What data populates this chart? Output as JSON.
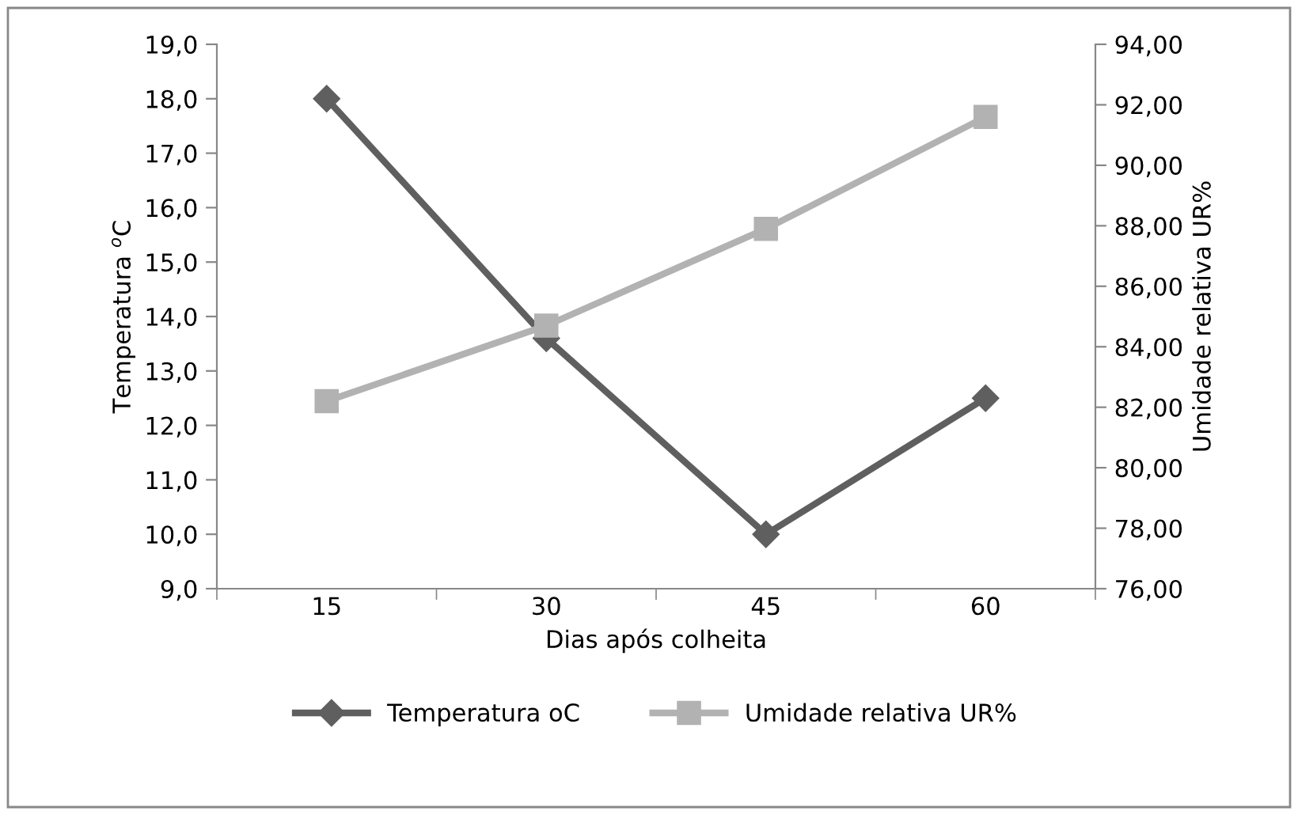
{
  "chart_data": {
    "type": "line",
    "xlabel": "Dias após colheita",
    "ylabel": "Temperatura $^{o}$C",
    "y2label": "Umidade relativa UR%",
    "categories": [
      "15",
      "30",
      "45",
      "60"
    ],
    "series": [
      {
        "name": "Temperatura oC",
        "color": "#5f5f5f",
        "marker": "diamond",
        "values": [
          18.0,
          13.6,
          10.0,
          12.5
        ]
      },
      {
        "name": "Umidade relativa UR%",
        "color": "#b2b2b2",
        "marker": "square",
        "axis": "y2",
        "values": [
          82.2,
          84.7,
          87.9,
          91.6
        ]
      }
    ],
    "ylim": [
      9,
      19
    ],
    "yticks": [
      {
        "value": 9,
        "label": "9,0"
      },
      {
        "value": 10,
        "label": "10,0"
      },
      {
        "value": 11,
        "label": "11,0"
      },
      {
        "value": 12,
        "label": "12,0"
      },
      {
        "value": 13,
        "label": "13,0"
      },
      {
        "value": 14,
        "label": "14,0"
      },
      {
        "value": 15,
        "label": "15,0"
      },
      {
        "value": 16,
        "label": "16,0"
      },
      {
        "value": 17,
        "label": "17,0"
      },
      {
        "value": 18,
        "label": "18,0"
      },
      {
        "value": 19,
        "label": "19,0"
      }
    ],
    "y2lim": [
      76,
      94
    ],
    "y2ticks": [
      {
        "value": 76,
        "label": "76,00"
      },
      {
        "value": 78,
        "label": "78,00"
      },
      {
        "value": 80,
        "label": "80,00"
      },
      {
        "value": 82,
        "label": "82,00"
      },
      {
        "value": 84,
        "label": "84,00"
      },
      {
        "value": 86,
        "label": "86,00"
      },
      {
        "value": 88,
        "label": "88,00"
      },
      {
        "value": 90,
        "label": "90,00"
      },
      {
        "value": 92,
        "label": "92,00"
      },
      {
        "value": 94,
        "label": "94,00"
      }
    ],
    "grid": false,
    "legend": "bottom",
    "line_style": "solid"
  }
}
